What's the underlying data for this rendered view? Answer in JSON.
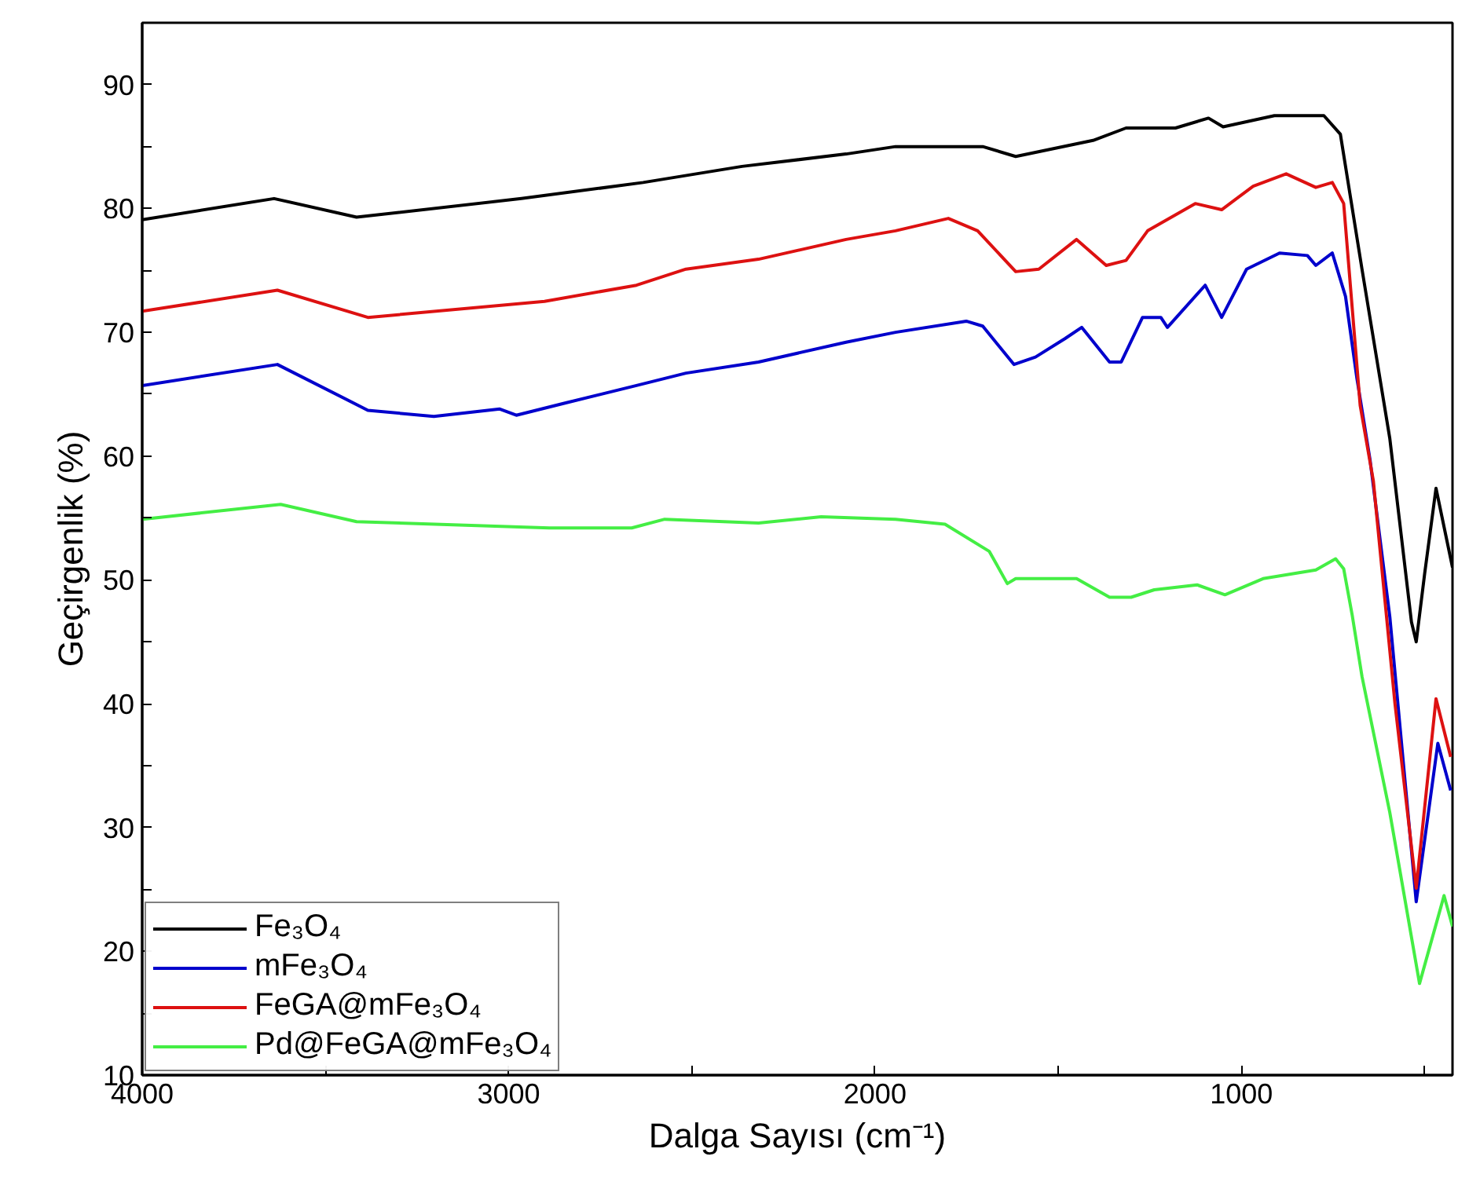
{
  "chart_data": {
    "type": "line",
    "xlabel": "Dalga Sayısı (cm⁻¹)",
    "ylabel": "Geçirgenlik (%)",
    "xlim": [
      4000,
      424
    ],
    "ylim": [
      10,
      95
    ],
    "xticks": [
      4000,
      {
        "value": 3500,
        "label": null
      },
      3000,
      {
        "value": 2500,
        "label": null
      },
      2000,
      {
        "value": 1500,
        "label": null
      },
      1000,
      {
        "value": 500,
        "label": null
      }
    ],
    "yticks": [
      10,
      {
        "value": 15,
        "label": null
      },
      20,
      {
        "value": 25,
        "label": null
      },
      30,
      {
        "value": 35,
        "label": null
      },
      40,
      {
        "value": 45,
        "label": null
      },
      50,
      {
        "value": 55,
        "label": null
      },
      60,
      {
        "value": 65,
        "label": null
      },
      70,
      {
        "value": 75,
        "label": null
      },
      80,
      {
        "value": 85,
        "label": null
      },
      90
    ],
    "grid": false,
    "legend": "bottom left",
    "marker": "none",
    "line_style": "solid",
    "series": [
      {
        "name": "Fe₃O₄",
        "color": "#000000",
        "x": [
          4000,
          3640,
          3415,
          2965,
          2633,
          2363,
          2079,
          1944,
          1706,
          1616,
          1405,
          1315,
          1180,
          1090,
          1050,
          910,
          775,
          730,
          671,
          595,
          536,
          523,
          500,
          469,
          424
        ],
        "values": [
          79.1,
          80.8,
          79.3,
          80.8,
          82.1,
          83.4,
          84.4,
          85.0,
          85.0,
          84.2,
          85.5,
          86.5,
          86.5,
          87.3,
          86.6,
          87.5,
          87.5,
          86.0,
          75.1,
          61.4,
          46.6,
          45.0,
          50.5,
          57.4,
          51.0
        ]
      },
      {
        "name": "mFe₃O₄",
        "color": "#0000cc",
        "x": [
          4000,
          3631,
          3384,
          3204,
          3024,
          2979,
          2844,
          2651,
          2516,
          2318,
          2079,
          1944,
          1751,
          1706,
          1621,
          1562,
          1481,
          1436,
          1360,
          1328,
          1270,
          1220,
          1202,
          1099,
          1054,
          986,
          896,
          820,
          797,
          752,
          716,
          685,
          649,
          595,
          523,
          464,
          429
        ],
        "values": [
          65.7,
          67.4,
          63.7,
          63.2,
          63.8,
          63.3,
          64.3,
          65.7,
          66.7,
          67.6,
          69.2,
          70.0,
          70.9,
          70.5,
          67.4,
          68.0,
          69.5,
          70.4,
          67.6,
          67.6,
          71.2,
          71.2,
          70.4,
          73.8,
          71.2,
          75.1,
          76.4,
          76.2,
          75.4,
          76.4,
          72.9,
          66.3,
          59.7,
          47.0,
          24.0,
          36.8,
          33.0
        ]
      },
      {
        "name": "FeGA@mFe₃O₄",
        "color": "#dd1111",
        "x": [
          4000,
          3631,
          3384,
          2902,
          2651,
          2516,
          2318,
          2079,
          1944,
          1800,
          1720,
          1616,
          1553,
          1450,
          1369,
          1315,
          1256,
          1126,
          1054,
          968,
          878,
          797,
          752,
          721,
          676,
          640,
          581,
          523,
          469,
          429
        ],
        "values": [
          71.7,
          73.4,
          71.2,
          72.5,
          73.8,
          75.1,
          75.9,
          77.5,
          78.2,
          79.2,
          78.2,
          74.9,
          75.1,
          77.5,
          75.4,
          75.8,
          78.2,
          80.4,
          79.9,
          81.8,
          82.8,
          81.7,
          82.1,
          80.4,
          64.1,
          58.0,
          40.0,
          25.1,
          40.4,
          35.7
        ]
      },
      {
        "name": "Pd@FeGA@mFe₃O₄",
        "color": "#44ee44",
        "x": [
          4000,
          3622,
          3415,
          2889,
          2664,
          2574,
          2318,
          2147,
          1944,
          1809,
          1688,
          1639,
          1616,
          1450,
          1360,
          1301,
          1238,
          1121,
          1045,
          941,
          797,
          743,
          721,
          698,
          671,
          595,
          514,
          447,
          424
        ],
        "values": [
          54.9,
          56.1,
          54.7,
          54.2,
          54.2,
          54.9,
          54.6,
          55.1,
          54.9,
          54.5,
          52.3,
          49.7,
          50.1,
          50.1,
          48.6,
          48.6,
          49.2,
          49.6,
          48.8,
          50.1,
          50.8,
          51.7,
          50.9,
          47.2,
          42.2,
          31.2,
          17.4,
          24.5,
          22.0
        ]
      }
    ]
  }
}
